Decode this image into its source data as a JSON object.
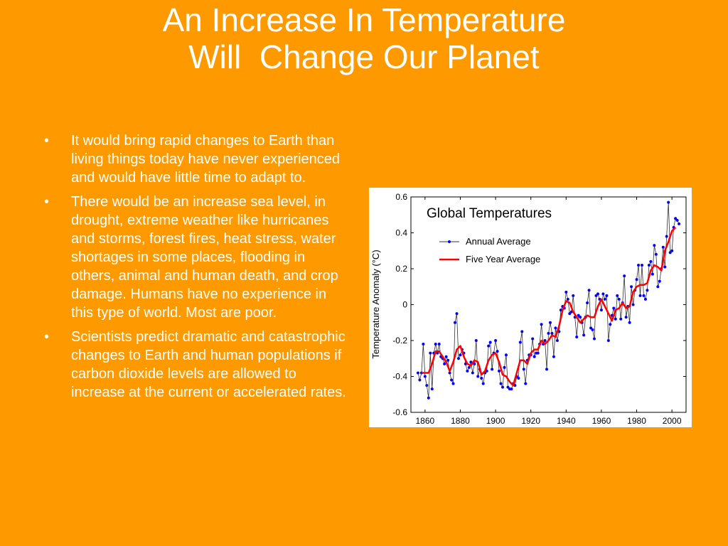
{
  "title": [
    "An Increase In Temperature",
    "Will  Change Our Planet"
  ],
  "bullets": [
    "It would bring rapid changes to Earth than living things today have never experienced and would have little time to adapt to.",
    "There would be an increase sea level, in drought, extreme weather like hurricanes and storms, forest fires, heat stress, water shortages in some places, flooding in others, animal and human death, and crop damage. Humans have no experience in this type of world. Most are poor.",
    "Scientists predict dramatic and catastrophic changes to Earth and human populations if carbon dioxide levels are allowed to increase at the current or accelerated rates."
  ],
  "chart_data": {
    "type": "line",
    "title": "Global Temperatures",
    "ylabel": "Temperature Anomaly (°C)",
    "xlim": [
      1852,
      2008
    ],
    "ylim": [
      -0.6,
      0.6
    ],
    "xticks": [
      1860,
      1880,
      1900,
      1920,
      1940,
      1960,
      1980,
      2000
    ],
    "yticks": [
      0.6,
      0.4,
      0.2,
      0,
      -0.2,
      -0.4,
      -0.6
    ],
    "series": [
      {
        "name": "Annual Average",
        "color": "#0000ff",
        "line_color": "#333333",
        "x": [
          1856,
          1857,
          1858,
          1859,
          1860,
          1861,
          1862,
          1863,
          1864,
          1865,
          1866,
          1867,
          1868,
          1869,
          1870,
          1871,
          1872,
          1873,
          1874,
          1875,
          1876,
          1877,
          1878,
          1879,
          1880,
          1881,
          1882,
          1883,
          1884,
          1885,
          1886,
          1887,
          1888,
          1889,
          1890,
          1891,
          1892,
          1893,
          1894,
          1895,
          1896,
          1897,
          1898,
          1899,
          1900,
          1901,
          1902,
          1903,
          1904,
          1905,
          1906,
          1907,
          1908,
          1909,
          1910,
          1911,
          1912,
          1913,
          1914,
          1915,
          1916,
          1917,
          1918,
          1919,
          1920,
          1921,
          1922,
          1923,
          1924,
          1925,
          1926,
          1927,
          1928,
          1929,
          1930,
          1931,
          1932,
          1933,
          1934,
          1935,
          1936,
          1937,
          1938,
          1939,
          1940,
          1941,
          1942,
          1943,
          1944,
          1945,
          1946,
          1947,
          1948,
          1949,
          1950,
          1951,
          1952,
          1953,
          1954,
          1955,
          1956,
          1957,
          1958,
          1959,
          1960,
          1961,
          1962,
          1963,
          1964,
          1965,
          1966,
          1967,
          1968,
          1969,
          1970,
          1971,
          1972,
          1973,
          1974,
          1975,
          1976,
          1977,
          1978,
          1979,
          1980,
          1981,
          1982,
          1983,
          1984,
          1985,
          1986,
          1987,
          1988,
          1989,
          1990,
          1991,
          1992,
          1993,
          1994,
          1995,
          1996,
          1997,
          1998,
          1999,
          2000,
          2001,
          2002,
          2003,
          2004
        ],
        "values": [
          -0.38,
          -0.42,
          -0.38,
          -0.22,
          -0.4,
          -0.45,
          -0.52,
          -0.27,
          -0.47,
          -0.27,
          -0.22,
          -0.27,
          -0.22,
          -0.29,
          -0.3,
          -0.33,
          -0.29,
          -0.31,
          -0.38,
          -0.42,
          -0.44,
          -0.1,
          -0.05,
          -0.3,
          -0.28,
          -0.25,
          -0.27,
          -0.33,
          -0.37,
          -0.35,
          -0.32,
          -0.38,
          -0.33,
          -0.2,
          -0.4,
          -0.36,
          -0.41,
          -0.44,
          -0.38,
          -0.37,
          -0.23,
          -0.21,
          -0.36,
          -0.27,
          -0.2,
          -0.26,
          -0.37,
          -0.44,
          -0.46,
          -0.35,
          -0.28,
          -0.46,
          -0.47,
          -0.47,
          -0.44,
          -0.45,
          -0.4,
          -0.41,
          -0.21,
          -0.15,
          -0.36,
          -0.44,
          -0.31,
          -0.28,
          -0.28,
          -0.19,
          -0.29,
          -0.27,
          -0.27,
          -0.22,
          -0.11,
          -0.22,
          -0.2,
          -0.36,
          -0.16,
          -0.1,
          -0.16,
          -0.29,
          -0.13,
          -0.2,
          -0.15,
          -0.03,
          -0.01,
          -0.02,
          0.07,
          0.03,
          -0.05,
          -0.04,
          0.05,
          -0.07,
          -0.18,
          -0.06,
          -0.07,
          -0.1,
          -0.17,
          -0.07,
          0.01,
          0.08,
          -0.13,
          -0.14,
          -0.19,
          0.05,
          0.06,
          0.03,
          -0.03,
          0.06,
          0.03,
          0.05,
          -0.2,
          -0.11,
          -0.06,
          -0.02,
          -0.08,
          0.05,
          0.03,
          -0.08,
          0.01,
          0.16,
          -0.07,
          -0.01,
          -0.1,
          0.1,
          0.0,
          0.08,
          0.14,
          0.22,
          0.05,
          0.22,
          0.05,
          0.03,
          0.08,
          0.22,
          0.24,
          0.17,
          0.33,
          0.28,
          0.1,
          0.13,
          0.2,
          0.32,
          0.21,
          0.38,
          0.57,
          0.29,
          0.3,
          0.43,
          0.48,
          0.47,
          0.45
        ]
      },
      {
        "name": "Five Year Average",
        "color": "#ff0000",
        "x": [
          1858,
          1860,
          1862,
          1864,
          1866,
          1868,
          1870,
          1872,
          1874,
          1876,
          1878,
          1880,
          1882,
          1884,
          1886,
          1888,
          1890,
          1892,
          1894,
          1896,
          1898,
          1900,
          1902,
          1904,
          1906,
          1908,
          1910,
          1912,
          1914,
          1916,
          1918,
          1920,
          1922,
          1924,
          1926,
          1928,
          1930,
          1932,
          1934,
          1936,
          1938,
          1940,
          1942,
          1944,
          1946,
          1948,
          1950,
          1952,
          1954,
          1956,
          1958,
          1960,
          1962,
          1964,
          1966,
          1968,
          1970,
          1972,
          1974,
          1976,
          1978,
          1980,
          1982,
          1984,
          1986,
          1988,
          1990,
          1992,
          1994,
          1996,
          1998,
          2000,
          2002
        ],
        "values": [
          -0.38,
          -0.38,
          -0.38,
          -0.33,
          -0.26,
          -0.26,
          -0.29,
          -0.32,
          -0.37,
          -0.32,
          -0.25,
          -0.23,
          -0.29,
          -0.33,
          -0.34,
          -0.31,
          -0.32,
          -0.39,
          -0.37,
          -0.31,
          -0.28,
          -0.27,
          -0.32,
          -0.39,
          -0.4,
          -0.43,
          -0.45,
          -0.38,
          -0.31,
          -0.31,
          -0.33,
          -0.27,
          -0.25,
          -0.25,
          -0.2,
          -0.22,
          -0.2,
          -0.17,
          -0.18,
          -0.12,
          -0.03,
          0.02,
          0.01,
          -0.04,
          -0.07,
          -0.1,
          -0.08,
          -0.06,
          -0.07,
          -0.07,
          -0.01,
          0.03,
          -0.01,
          -0.05,
          -0.09,
          -0.03,
          -0.02,
          0.01,
          -0.02,
          -0.01,
          0.07,
          0.1,
          0.11,
          0.11,
          0.12,
          0.19,
          0.22,
          0.21,
          0.19,
          0.3,
          0.35,
          0.41,
          0.43
        ]
      }
    ]
  }
}
